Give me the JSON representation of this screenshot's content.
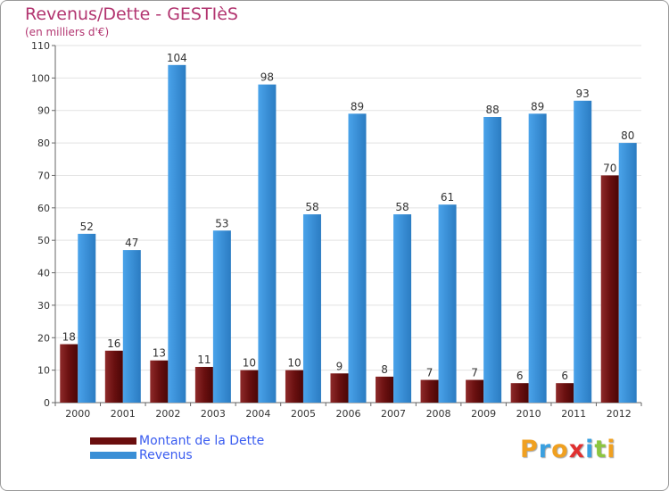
{
  "title": "Revenus/Dette - GESTIèS",
  "subtitle": "(en milliers d'€)",
  "chart_data": {
    "type": "bar",
    "categories": [
      "2000",
      "2001",
      "2002",
      "2003",
      "2004",
      "2005",
      "2006",
      "2007",
      "2008",
      "2009",
      "2010",
      "2011",
      "2012"
    ],
    "series": [
      {
        "name": "Montant de la Dette",
        "values": [
          18,
          16,
          13,
          11,
          10,
          10,
          9,
          8,
          7,
          7,
          6,
          6,
          70
        ],
        "color": "#7a1a1a"
      },
      {
        "name": "Revenus",
        "values": [
          52,
          47,
          104,
          53,
          98,
          58,
          89,
          58,
          61,
          88,
          89,
          93,
          80
        ],
        "color": "#3a8fd6"
      }
    ],
    "ylim": [
      0,
      110
    ],
    "yticks": [
      0,
      10,
      20,
      30,
      40,
      50,
      60,
      70,
      80,
      90,
      100,
      110
    ],
    "grid": true,
    "legend": "bottom-left"
  },
  "legend": [
    {
      "label": "Montant de la Dette",
      "color": "#6a0e0e"
    },
    {
      "label": "Revenus",
      "color": "#3a8fd6"
    }
  ],
  "logo": {
    "text": "Proxiti",
    "letters": [
      {
        "ch": "P",
        "color": "#f0a020"
      },
      {
        "ch": "r",
        "color": "#3aa0e0"
      },
      {
        "ch": "o",
        "color": "#f0a020"
      },
      {
        "ch": "x",
        "color": "#e03030"
      },
      {
        "ch": "i",
        "color": "#3aa0e0"
      },
      {
        "ch": "t",
        "color": "#8cc63f"
      },
      {
        "ch": "i",
        "color": "#f0a020"
      }
    ]
  }
}
